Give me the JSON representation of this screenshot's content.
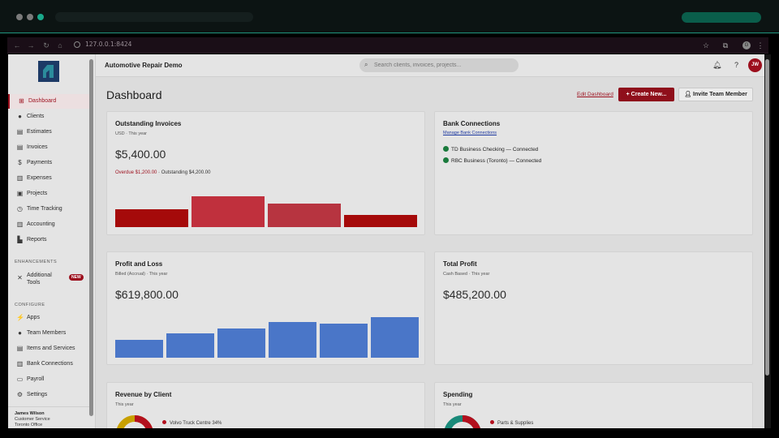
{
  "browser": {
    "url": "127.0.0.1:8424",
    "profile_initial": "G"
  },
  "app": {
    "title": "Automotive Repair Demo",
    "search_placeholder": "Search clients, invoices, projects...",
    "user_initials": "JW"
  },
  "sidebar": {
    "items": [
      {
        "label": "Dashboard",
        "icon": "grid-icon",
        "glyph": "⊞",
        "active": true
      },
      {
        "label": "Clients",
        "icon": "person-icon",
        "glyph": "●"
      },
      {
        "label": "Estimates",
        "icon": "document-icon",
        "glyph": "▤"
      },
      {
        "label": "Invoices",
        "icon": "invoice-icon",
        "glyph": "▤"
      },
      {
        "label": "Payments",
        "icon": "dollar-icon",
        "glyph": "$"
      },
      {
        "label": "Expenses",
        "icon": "receipt-icon",
        "glyph": "▥"
      },
      {
        "label": "Projects",
        "icon": "briefcase-icon",
        "glyph": "▣"
      },
      {
        "label": "Time Tracking",
        "icon": "clock-icon",
        "glyph": "◷"
      },
      {
        "label": "Accounting",
        "icon": "bank-icon",
        "glyph": "▥"
      },
      {
        "label": "Reports",
        "icon": "chart-icon",
        "glyph": "▙"
      }
    ],
    "enhancements_heading": "ENHANCEMENTS",
    "additional_tools": {
      "label_line1": "Additional",
      "label_line2": "Tools",
      "badge": "NEW"
    },
    "configure_heading": "CONFIGURE",
    "config_items": [
      {
        "label": "Apps",
        "icon": "plug-icon",
        "glyph": "⚡"
      },
      {
        "label": "Team Members",
        "icon": "team-icon",
        "glyph": "●"
      },
      {
        "label": "Items and Services",
        "icon": "stack-icon",
        "glyph": "▤"
      },
      {
        "label": "Bank Connections",
        "icon": "bank-icon",
        "glyph": "▥"
      },
      {
        "label": "Payroll",
        "icon": "payroll-icon",
        "glyph": "▭"
      },
      {
        "label": "Settings",
        "icon": "gear-icon",
        "glyph": "⚙"
      }
    ],
    "user": {
      "name": "James Wilson",
      "role": "Customer Service",
      "office": "Toronto Office"
    }
  },
  "main": {
    "page_title": "Dashboard",
    "edit_dashboard": "Edit Dashboard",
    "create_new": "Create New...",
    "invite_team": "Invite Team Member"
  },
  "cards": {
    "outstanding": {
      "title": "Outstanding Invoices",
      "sub": "USD · This year",
      "amount": "$5,400.00",
      "overdue": "Overdue $1,200.00",
      "outstanding": " · Outstanding $4,200.00",
      "bars": [
        0.58,
        1.0,
        0.75,
        0.4
      ],
      "colors": [
        "#a50a0a",
        "#c0303d",
        "#b73440",
        "#a50a0a"
      ]
    },
    "bank": {
      "title": "Bank Connections",
      "manage": "Manage Bank Connections",
      "connections": [
        "TD Business Checking — Connected",
        "RBC Business (Toronto) — Connected"
      ]
    },
    "pnl": {
      "title": "Profit and Loss",
      "sub": "Billed (Accrual) · This year",
      "amount": "$619,800.00",
      "bars": [
        0.44,
        0.6,
        0.72,
        0.88,
        0.84,
        1.0
      ],
      "color": "#4a76c8"
    },
    "profit": {
      "title": "Total Profit",
      "sub": "Cash Based · This year",
      "amount": "$485,200.00"
    },
    "revenue": {
      "title": "Revenue by Client",
      "sub": "This year",
      "legend": "Volvo Truck Centre 34%"
    },
    "spending": {
      "title": "Spending",
      "sub": "This year",
      "legend": "Parts & Supplies"
    }
  }
}
